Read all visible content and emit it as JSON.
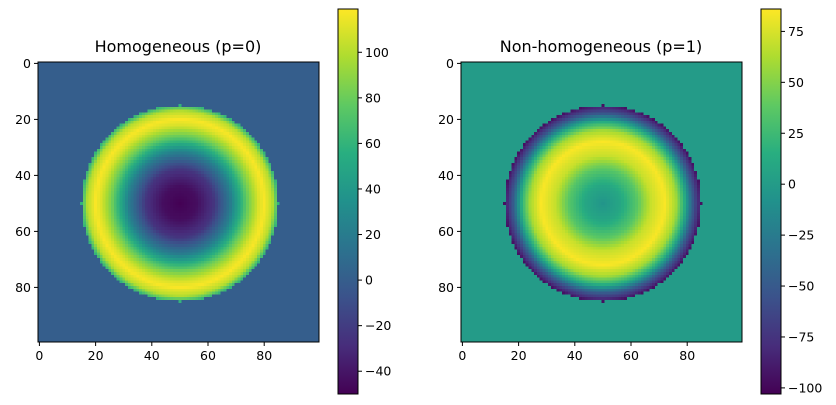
{
  "chart_data": [
    {
      "type": "heatmap",
      "title": "Homogeneous (p=0)",
      "colormap": "viridis",
      "grid_size": [
        100,
        100
      ],
      "field": "radial ring: value vs distance r from center (50,50), zero outside r>35",
      "center": [
        50,
        50
      ],
      "radius": 35,
      "outside_value": 0,
      "radial_profile": [
        [
          0,
          -50
        ],
        [
          6,
          -44
        ],
        [
          12,
          -25
        ],
        [
          18,
          20
        ],
        [
          24,
          80
        ],
        [
          28,
          110
        ],
        [
          30,
          118
        ],
        [
          33,
          100
        ],
        [
          35,
          60
        ]
      ],
      "xticks": [
        "0",
        "20",
        "40",
        "60",
        "80"
      ],
      "yticks": [
        "0",
        "20",
        "40",
        "60",
        "80"
      ],
      "colorbar": {
        "vmin": -50,
        "vmax": 119,
        "ticks": [
          "100",
          "80",
          "60",
          "40",
          "20",
          "0",
          "−20",
          "−40"
        ],
        "tick_values": [
          100,
          80,
          60,
          40,
          20,
          0,
          -20,
          -40
        ]
      }
    },
    {
      "type": "heatmap",
      "title": "Non-homogeneous (p=1)",
      "colormap": "viridis",
      "grid_size": [
        100,
        100
      ],
      "field": "radial ring: value vs distance r from center (50,50), zero outside r>35",
      "center": [
        50,
        50
      ],
      "radius": 35,
      "outside_value": 0,
      "radial_profile": [
        [
          0,
          -5
        ],
        [
          6,
          8
        ],
        [
          12,
          35
        ],
        [
          17,
          70
        ],
        [
          22,
          85
        ],
        [
          26,
          60
        ],
        [
          29,
          15
        ],
        [
          32,
          -50
        ],
        [
          35,
          -95
        ]
      ],
      "xticks": [
        "0",
        "20",
        "40",
        "60",
        "80"
      ],
      "yticks": [
        "0",
        "20",
        "40",
        "60",
        "80"
      ],
      "colorbar": {
        "vmin": -103,
        "vmax": 86,
        "ticks": [
          "75",
          "50",
          "25",
          "0",
          "−25",
          "−50",
          "−75",
          "−100"
        ],
        "tick_values": [
          75,
          50,
          25,
          0,
          -25,
          -50,
          -75,
          -100
        ]
      }
    }
  ]
}
